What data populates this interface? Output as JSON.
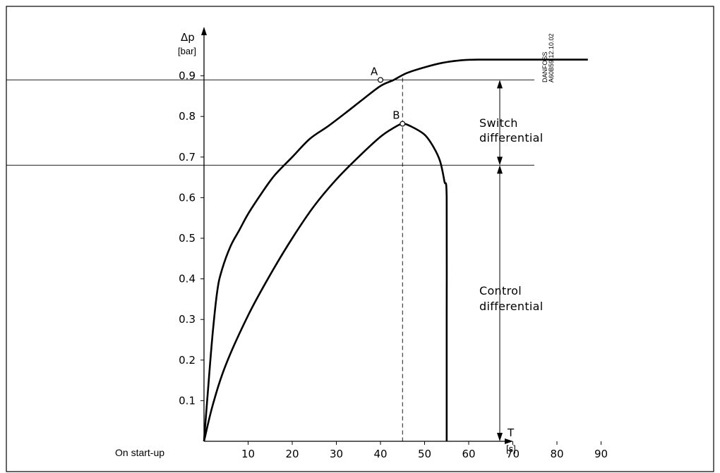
{
  "chart_data": {
    "type": "line",
    "ylabel": "Δp",
    "yunit": "[bar]",
    "xlabel": "T",
    "xunit": "[s]",
    "origin_label": "On start-up",
    "xticks": [
      10,
      20,
      30,
      40,
      50,
      60,
      70,
      80,
      90
    ],
    "yticks": [
      "0.1",
      "0.2",
      "0.3",
      "0.4",
      "0.5",
      "0.6",
      "0.7",
      "0.8",
      "0.9"
    ],
    "xlim": [
      0,
      95
    ],
    "ylim": [
      0,
      1.0
    ],
    "grid": false,
    "series": [
      {
        "x": [
          0,
          1,
          2,
          3,
          4,
          6,
          8,
          10,
          13,
          16,
          20,
          24,
          28,
          32,
          36,
          40,
          43,
          46,
          50,
          54,
          58,
          62,
          70,
          80,
          87
        ],
        "y": [
          0,
          0.14,
          0.27,
          0.37,
          0.42,
          0.48,
          0.52,
          0.56,
          0.61,
          0.655,
          0.7,
          0.745,
          0.775,
          0.808,
          0.842,
          0.875,
          0.89,
          0.907,
          0.921,
          0.932,
          0.938,
          0.94,
          0.94,
          0.94,
          0.94
        ]
      },
      {
        "x": [
          0,
          2,
          5,
          10,
          15,
          20,
          25,
          30,
          35,
          40,
          43,
          45,
          47,
          50,
          52,
          53.5,
          54.5,
          55,
          55,
          55
        ],
        "y": [
          0,
          0.09,
          0.19,
          0.31,
          0.41,
          0.5,
          0.58,
          0.645,
          0.7,
          0.75,
          0.772,
          0.782,
          0.775,
          0.755,
          0.725,
          0.69,
          0.64,
          0.6,
          0.3,
          0
        ]
      }
    ],
    "points": [
      {
        "label": "A",
        "x": 40,
        "y": 0.89
      },
      {
        "label": "B",
        "x": 45,
        "y": 0.782
      }
    ],
    "reference_lines": [
      {
        "y": 0.89
      },
      {
        "y": 0.68
      },
      {
        "x": 45,
        "style": "dashed"
      }
    ],
    "annotations": [
      {
        "line1": "Switch",
        "line2": "differential"
      },
      {
        "line1": "Control",
        "line2": "differential"
      }
    ],
    "side_text": [
      "DANFOSS",
      "A60B59.12.10.02"
    ]
  }
}
